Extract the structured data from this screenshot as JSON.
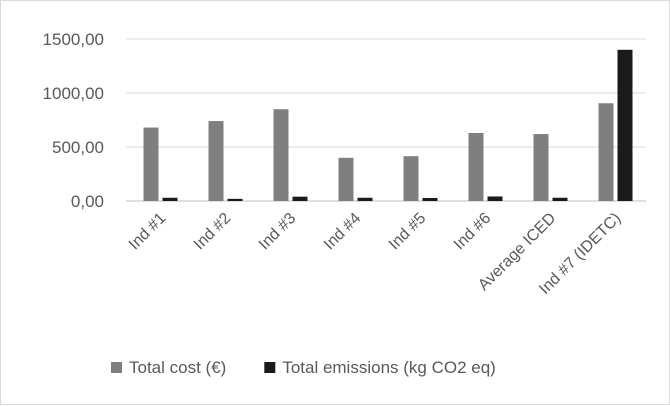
{
  "chart_data": {
    "type": "bar",
    "title": "",
    "xlabel": "",
    "ylabel": "",
    "categories": [
      "Ind #1",
      "Ind #2",
      "Ind #3",
      "Ind #4",
      "Ind #5",
      "Ind #6",
      "Average ICED",
      "Ind #7 (IDETC)"
    ],
    "series": [
      {
        "name": "Total cost (€)",
        "color": "#7f7f7f",
        "values": [
          680,
          740,
          850,
          400,
          415,
          630,
          620,
          905
        ]
      },
      {
        "name": "Total emissions (kg CO2 eq)",
        "color": "#1a1a1a",
        "values": [
          30,
          20,
          40,
          30,
          28,
          42,
          30,
          1400
        ]
      }
    ],
    "ylim": [
      0,
      1500
    ],
    "yticks": [
      0,
      500,
      1000,
      1500
    ],
    "ytick_labels": [
      "0,00",
      "500,00",
      "1000,00",
      "1500,00"
    ],
    "grid": true,
    "legend_position": "bottom"
  }
}
